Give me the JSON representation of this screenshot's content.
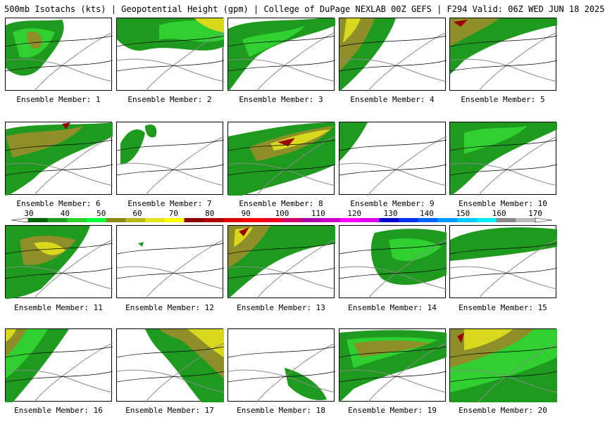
{
  "header": {
    "title": "500mb Isotachs (kts) | Geopotential Height (gpm) | College of DuPage NEXLAB   00Z GEFS | F294 Valid: 06Z WED JUN 18 2025"
  },
  "members": [
    {
      "label": "Ensemble Member: 1"
    },
    {
      "label": "Ensemble Member: 2"
    },
    {
      "label": "Ensemble Member: 3"
    },
    {
      "label": "Ensemble Member: 4"
    },
    {
      "label": "Ensemble Member: 5"
    },
    {
      "label": "Ensemble Member: 6"
    },
    {
      "label": "Ensemble Member: 7"
    },
    {
      "label": "Ensemble Member: 8"
    },
    {
      "label": "Ensemble Member: 9"
    },
    {
      "label": "Ensemble Member: 10"
    },
    {
      "label": "Ensemble Member: 11"
    },
    {
      "label": "Ensemble Member: 12"
    },
    {
      "label": "Ensemble Member: 13"
    },
    {
      "label": "Ensemble Member: 14"
    },
    {
      "label": "Ensemble Member: 15"
    },
    {
      "label": "Ensemble Member: 16"
    },
    {
      "label": "Ensemble Member: 17"
    },
    {
      "label": "Ensemble Member: 18"
    },
    {
      "label": "Ensemble Member: 19"
    },
    {
      "label": "Ensemble Member: 20"
    }
  ],
  "colorbar": {
    "labels": [
      "30",
      "40",
      "50",
      "60",
      "70",
      "80",
      "90",
      "100",
      "110",
      "120",
      "130",
      "140",
      "150",
      "160",
      "170"
    ],
    "colors": [
      "#006400",
      "#1f9e1f",
      "#2cd22c",
      "#00ff3c",
      "#8b8b1a",
      "#b8b81c",
      "#e5e51c",
      "#ffff00",
      "#8b0000",
      "#b00000",
      "#d80000",
      "#ff0000",
      "#e8001e",
      "#cc0066",
      "#aa00aa",
      "#cc00cc",
      "#ff00ff",
      "#dd00ee",
      "#0000cc",
      "#0033ee",
      "#0066ff",
      "#0099ff",
      "#00ccff",
      "#00eeff",
      "#888888",
      "#bbbbbb"
    ]
  }
}
